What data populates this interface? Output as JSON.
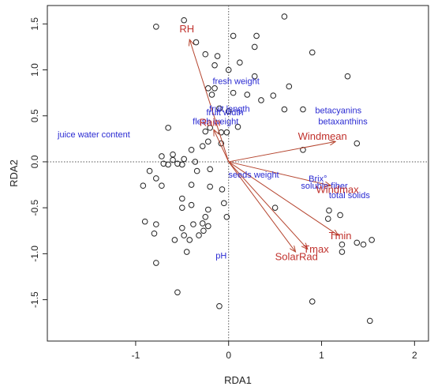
{
  "chart_data": {
    "type": "scatter",
    "title": "",
    "xlabel": "RDA1",
    "ylabel": "RDA2",
    "xlim": [
      -1.95,
      2.15
    ],
    "ylim": [
      -1.95,
      1.7
    ],
    "xticks": [
      -1,
      0,
      1,
      2
    ],
    "yticks": [
      -1.5,
      -1.0,
      -0.5,
      0.0,
      0.5,
      1.0,
      1.5
    ],
    "ytick_labels": [
      "-1.5",
      "-1.0",
      "-0.5",
      "0.0",
      "0.5",
      "1.0",
      "1.5"
    ],
    "reference_lines": {
      "x": 0,
      "y": 0,
      "style": "dotted"
    },
    "site_points": [
      [
        -0.78,
        1.47
      ],
      [
        -0.48,
        1.54
      ],
      [
        -0.35,
        1.3
      ],
      [
        -0.25,
        1.17
      ],
      [
        -0.12,
        1.15
      ],
      [
        0.05,
        1.37
      ],
      [
        0.3,
        1.37
      ],
      [
        0.6,
        1.58
      ],
      [
        0.28,
        1.25
      ],
      [
        0.12,
        1.08
      ],
      [
        0.9,
        1.19
      ],
      [
        -0.15,
        1.05
      ],
      [
        0.0,
        1.0
      ],
      [
        0.28,
        0.93
      ],
      [
        0.65,
        0.82
      ],
      [
        1.28,
        0.93
      ],
      [
        -0.18,
        0.73
      ],
      [
        -0.22,
        0.8
      ],
      [
        -0.15,
        0.8
      ],
      [
        0.05,
        0.75
      ],
      [
        0.2,
        0.73
      ],
      [
        0.35,
        0.67
      ],
      [
        0.48,
        0.72
      ],
      [
        0.6,
        0.57
      ],
      [
        -0.1,
        0.58
      ],
      [
        0.0,
        0.55
      ],
      [
        0.1,
        0.38
      ],
      [
        0.8,
        0.57
      ],
      [
        -0.65,
        0.37
      ],
      [
        -0.25,
        0.33
      ],
      [
        -0.2,
        0.37
      ],
      [
        -0.08,
        0.32
      ],
      [
        -0.02,
        0.32
      ],
      [
        1.38,
        0.2
      ],
      [
        0.8,
        0.13
      ],
      [
        -0.6,
        0.08
      ],
      [
        -0.48,
        0.03
      ],
      [
        -0.72,
        0.06
      ],
      [
        -0.6,
        0.02
      ],
      [
        -0.4,
        0.13
      ],
      [
        -0.28,
        0.17
      ],
      [
        -0.22,
        0.22
      ],
      [
        -0.08,
        0.2
      ],
      [
        -0.65,
        -0.03
      ],
      [
        -0.55,
        -0.02
      ],
      [
        -0.7,
        -0.02
      ],
      [
        -0.5,
        -0.03
      ],
      [
        -0.36,
        0.0
      ],
      [
        -0.85,
        -0.1
      ],
      [
        -0.78,
        -0.18
      ],
      [
        -0.92,
        -0.26
      ],
      [
        -0.72,
        -0.26
      ],
      [
        -0.4,
        -0.25
      ],
      [
        -0.34,
        -0.1
      ],
      [
        -0.2,
        -0.08
      ],
      [
        -0.2,
        -0.27
      ],
      [
        -0.07,
        -0.3
      ],
      [
        -0.5,
        -0.4
      ],
      [
        -0.4,
        -0.47
      ],
      [
        -0.5,
        -0.5
      ],
      [
        -0.22,
        -0.52
      ],
      [
        -0.05,
        -0.45
      ],
      [
        0.5,
        -0.5
      ],
      [
        1.08,
        -0.53
      ],
      [
        1.2,
        -0.58
      ],
      [
        1.07,
        -0.62
      ],
      [
        -0.25,
        -0.6
      ],
      [
        -0.28,
        -0.67
      ],
      [
        -0.38,
        -0.68
      ],
      [
        -0.02,
        -0.6
      ],
      [
        -0.9,
        -0.65
      ],
      [
        -0.78,
        -0.68
      ],
      [
        -0.8,
        -0.78
      ],
      [
        -0.5,
        -0.72
      ],
      [
        -0.48,
        -0.8
      ],
      [
        -0.42,
        -0.85
      ],
      [
        -0.22,
        -0.7
      ],
      [
        -0.27,
        -0.75
      ],
      [
        -0.32,
        -0.8
      ],
      [
        -0.58,
        -0.85
      ],
      [
        -0.45,
        -0.98
      ],
      [
        1.22,
        -0.9
      ],
      [
        1.38,
        -0.88
      ],
      [
        1.45,
        -0.9
      ],
      [
        1.54,
        -0.85
      ],
      [
        1.22,
        -0.98
      ],
      [
        -0.78,
        -1.1
      ],
      [
        -0.55,
        -1.42
      ],
      [
        0.9,
        -1.52
      ],
      [
        -0.1,
        -1.57
      ],
      [
        1.52,
        -1.73
      ]
    ],
    "species": [
      {
        "label": "fresh weight",
        "x": 0.08,
        "y": 0.88
      },
      {
        "label": "fruit length",
        "x": 0.01,
        "y": 0.58
      },
      {
        "label": "fruit width",
        "x": -0.04,
        "y": 0.54
      },
      {
        "label": "flesh weight",
        "x": -0.14,
        "y": 0.44
      },
      {
        "label": "juice water content",
        "x": -1.45,
        "y": 0.3
      },
      {
        "label": "seeds weight",
        "x": 0.27,
        "y": -0.14
      },
      {
        "label": "betacyanins",
        "x": 1.18,
        "y": 0.56
      },
      {
        "label": "betaxanthins",
        "x": 1.23,
        "y": 0.44
      },
      {
        "label": "Brix°",
        "x": 0.96,
        "y": -0.18
      },
      {
        "label": "soluble fiber",
        "x": 1.03,
        "y": -0.26
      },
      {
        "label": "total solids",
        "x": 1.3,
        "y": -0.36
      },
      {
        "label": "pH",
        "x": -0.08,
        "y": -1.02
      }
    ],
    "env_vectors": [
      {
        "label": "RH",
        "x": -0.42,
        "y": 1.33,
        "label_x": -0.45,
        "label_y": 1.41
      },
      {
        "label": "Rain",
        "x": -0.16,
        "y": 0.35,
        "label_x": -0.2,
        "label_y": 0.39
      },
      {
        "label": "Windmean",
        "x": 1.15,
        "y": 0.22,
        "label_x": 1.01,
        "label_y": 0.24
      },
      {
        "label": "Windmax",
        "x": 1.1,
        "y": -0.26,
        "label_x": 1.17,
        "label_y": -0.34
      },
      {
        "label": "Tmin",
        "x": 1.18,
        "y": -0.8,
        "label_x": 1.2,
        "label_y": -0.84
      },
      {
        "label": "Tmax",
        "x": 0.85,
        "y": -0.95,
        "label_x": 0.94,
        "label_y": -0.99
      },
      {
        "label": "SolarRad",
        "x": 0.72,
        "y": -0.98,
        "label_x": 0.73,
        "label_y": -1.07
      }
    ]
  }
}
